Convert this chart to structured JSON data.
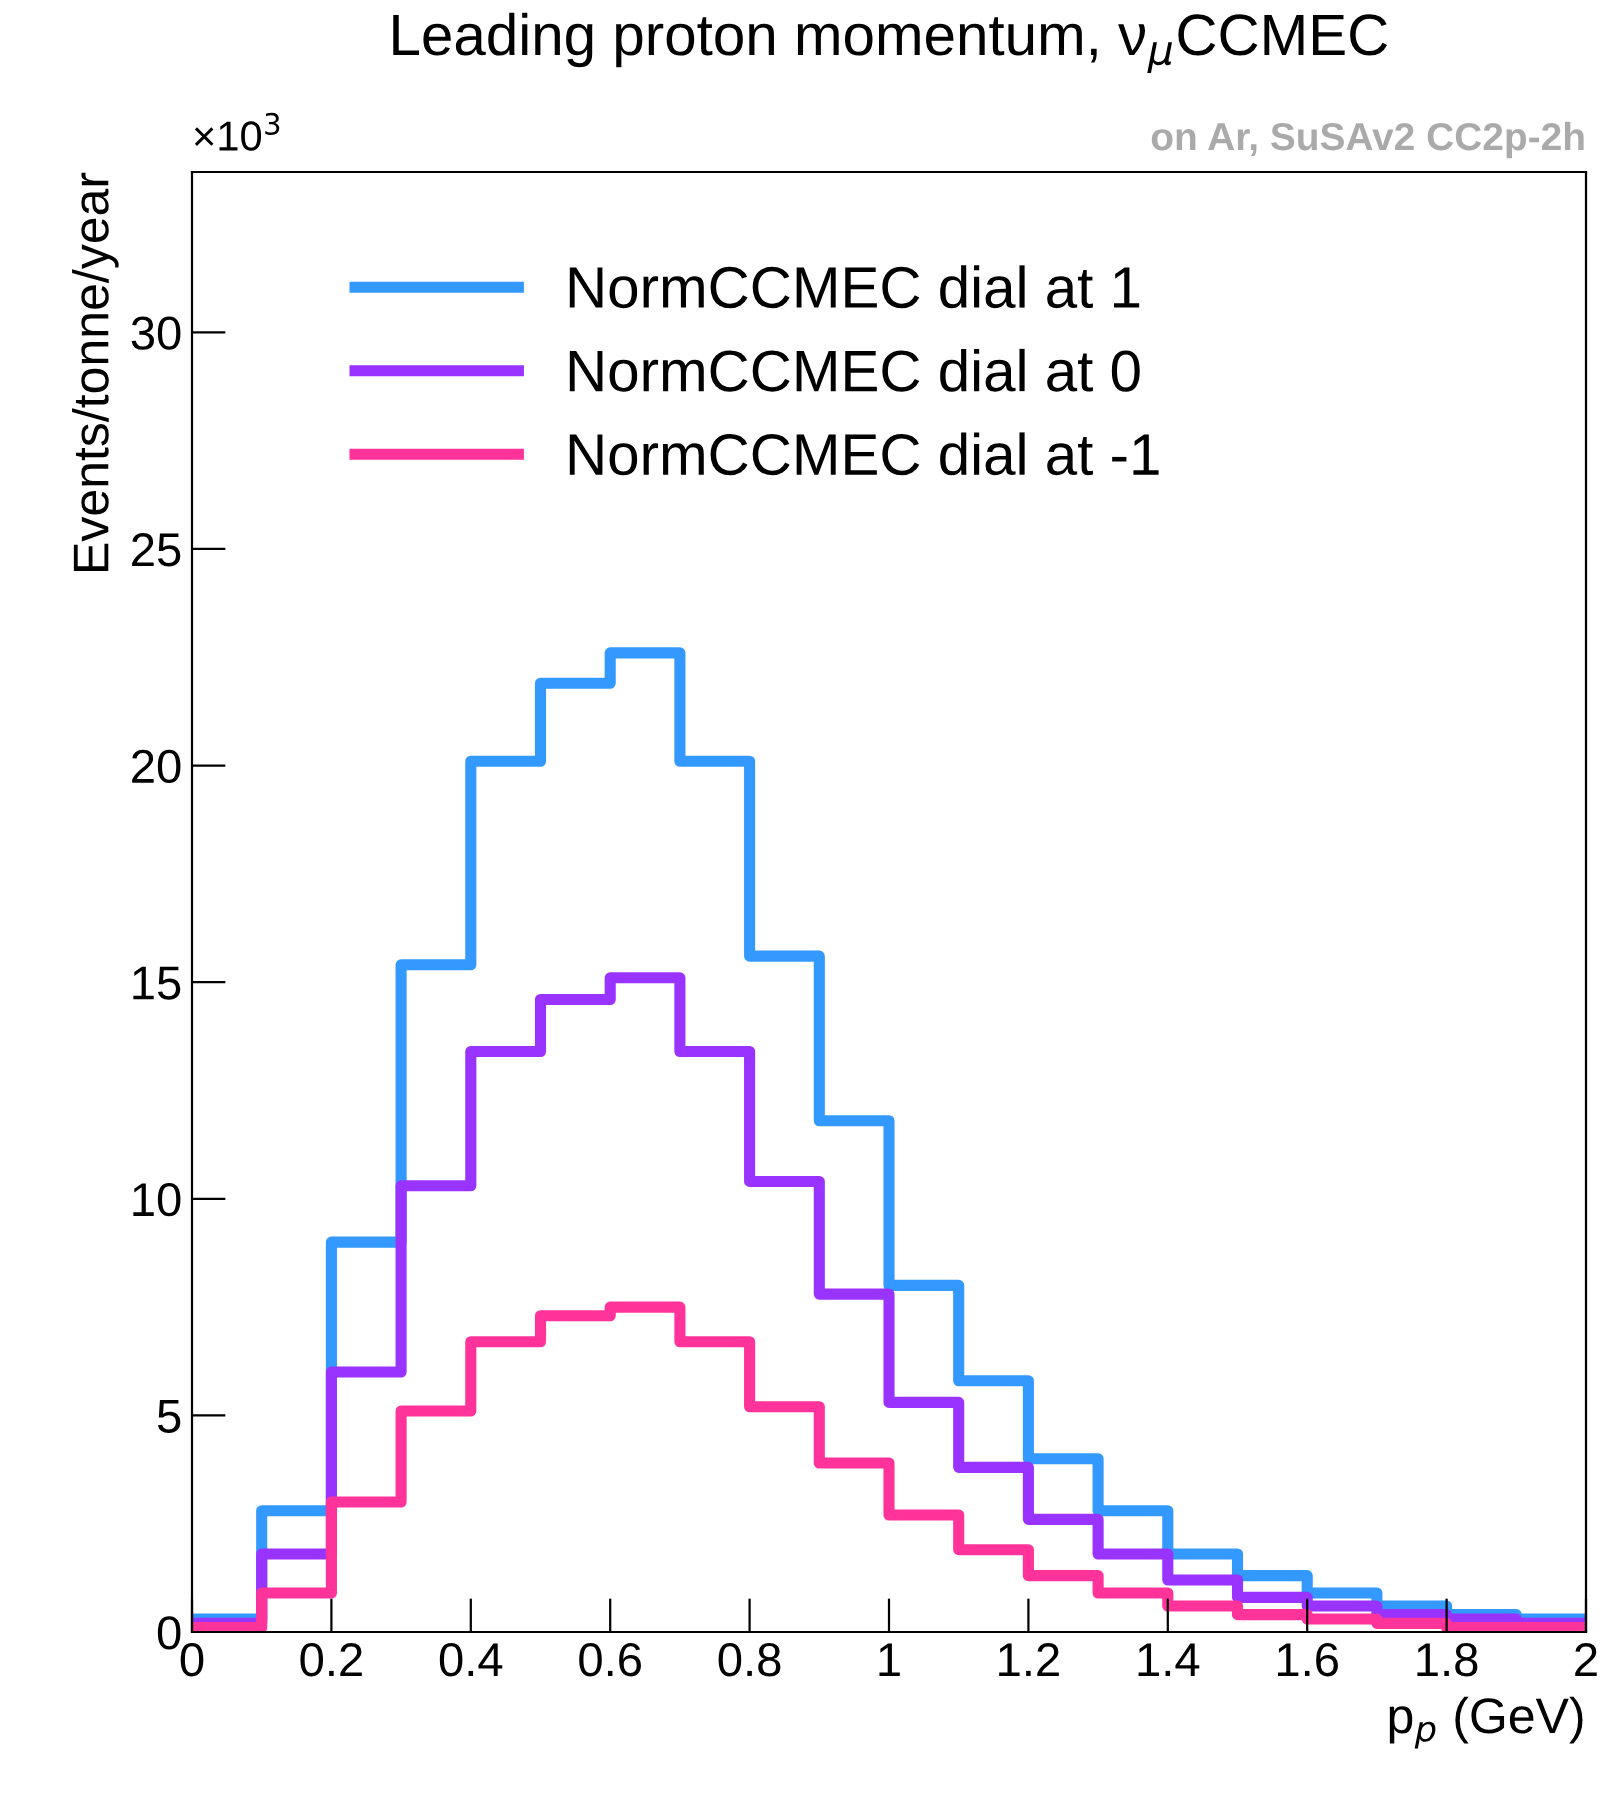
{
  "chart_data": {
    "type": "histogram",
    "title": "Leading proton momentum, ν$_{μ}$CCMEC",
    "subtitle": "on Ar, SuSAv2 CC2p-2h",
    "xlabel": "p$_{p}$ (GeV)",
    "ylabel": "Events/tonne/year",
    "annotations": [
      "×10$^{3}$"
    ],
    "bins": [
      0,
      0.1,
      0.2,
      0.3,
      0.4,
      0.5,
      0.6,
      0.7,
      0.8,
      0.9,
      1.0,
      1.1,
      1.2,
      1.3,
      1.4,
      1.5,
      1.6,
      1.7,
      1.8,
      1.9,
      2.0
    ],
    "series": [
      {
        "name": "NormCCMEC dial at 1",
        "color": "#3399ff",
        "values": [
          0.3,
          2.8,
          9.0,
          15.4,
          20.1,
          21.9,
          22.6,
          20.1,
          15.6,
          11.8,
          8.0,
          5.8,
          4.0,
          2.8,
          1.8,
          1.3,
          0.9,
          0.6,
          0.4,
          0.3
        ]
      },
      {
        "name": "NormCCMEC dial at 0",
        "color": "#9933ff",
        "values": [
          0.2,
          1.8,
          6.0,
          10.3,
          13.4,
          14.6,
          15.1,
          13.4,
          10.4,
          7.8,
          5.3,
          3.8,
          2.6,
          1.8,
          1.2,
          0.8,
          0.6,
          0.4,
          0.3,
          0.2
        ]
      },
      {
        "name": "NormCCMEC dial at -1",
        "color": "#ff3399",
        "values": [
          0.1,
          0.9,
          3.0,
          5.1,
          6.7,
          7.3,
          7.5,
          6.7,
          5.2,
          3.9,
          2.7,
          1.9,
          1.3,
          0.9,
          0.6,
          0.4,
          0.3,
          0.2,
          0.1,
          0.1
        ]
      }
    ],
    "xlim": [
      0,
      2
    ],
    "ylim": [
      0,
      33.7
    ],
    "xticks": [
      0,
      0.2,
      0.4,
      0.6,
      0.8,
      1,
      1.2,
      1.4,
      1.6,
      1.8,
      2
    ],
    "yticks": [
      0,
      5,
      10,
      15,
      20,
      25,
      30
    ],
    "legend": "top left",
    "grid": false
  }
}
